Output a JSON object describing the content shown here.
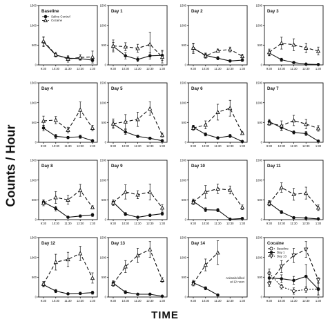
{
  "axes": {
    "xlabel": "TIME",
    "ylabel": "Counts / Hour"
  },
  "chart_data": {
    "type": "line",
    "x": [
      "9:30",
      "10:30",
      "11:30",
      "12:30",
      "1:30"
    ],
    "yticks": [
      0,
      500,
      1000,
      1500
    ],
    "ylim": [
      0,
      1500
    ],
    "panels": [
      {
        "title": "Baseline",
        "legend": [
          "Saline Control",
          "Cocaine"
        ],
        "series": [
          {
            "style": "saline",
            "values": [
              580,
              250,
              170,
              160,
              120
            ],
            "err": [
              120,
              40,
              40,
              40,
              40
            ]
          },
          {
            "style": "cocaine",
            "values": [
              600,
              260,
              150,
              190,
              200
            ],
            "err": [
              110,
              60,
              80,
              70,
              150
            ]
          }
        ]
      },
      {
        "title": "Day 1",
        "series": [
          {
            "style": "saline",
            "values": [
              470,
              230,
              140,
              230,
              240
            ],
            "err": [
              100,
              80,
              60,
              80,
              130
            ]
          },
          {
            "style": "cocaine",
            "values": [
              480,
              460,
              420,
              520,
              200
            ],
            "err": [
              150,
              100,
              100,
              300,
              150
            ]
          }
        ]
      },
      {
        "title": "Day 2",
        "series": [
          {
            "style": "saline",
            "values": [
              420,
              240,
              170,
              100,
              120
            ],
            "err": [
              130,
              60,
              40,
              30,
              30
            ]
          },
          {
            "style": "cocaine",
            "values": [
              430,
              230,
              360,
              390,
              220
            ],
            "err": [
              100,
              60,
              40,
              60,
              50
            ]
          }
        ]
      },
      {
        "title": "Day 3",
        "series": [
          {
            "style": "saline",
            "values": [
              300,
              130,
              60,
              20,
              10
            ],
            "err": [
              70,
              40,
              20,
              10,
              10
            ]
          },
          {
            "style": "cocaine",
            "values": [
              320,
              550,
              510,
              430,
              350
            ],
            "err": [
              80,
              150,
              150,
              120,
              100
            ]
          }
        ]
      },
      {
        "title": "Day 4",
        "series": [
          {
            "style": "saline",
            "values": [
              360,
              150,
              120,
              140,
              40
            ],
            "err": [
              70,
              50,
              30,
              40,
              20
            ]
          },
          {
            "style": "cocaine",
            "values": [
              540,
              560,
              310,
              820,
              360
            ],
            "err": [
              120,
              90,
              70,
              200,
              70
            ]
          }
        ]
      },
      {
        "title": "Day 5",
        "series": [
          {
            "style": "saline",
            "values": [
              460,
              260,
              150,
              100,
              40
            ],
            "err": [
              80,
              60,
              30,
              30,
              20
            ]
          },
          {
            "style": "cocaine",
            "values": [
              470,
              520,
              580,
              850,
              180
            ],
            "err": [
              120,
              180,
              180,
              170,
              50
            ]
          }
        ]
      },
      {
        "title": "Day 6",
        "series": [
          {
            "style": "saline",
            "values": [
              380,
              200,
              110,
              160,
              20
            ],
            "err": [
              50,
              40,
              30,
              40,
              10
            ]
          },
          {
            "style": "cocaine",
            "values": [
              360,
              440,
              760,
              860,
              230
            ],
            "err": [
              60,
              100,
              200,
              200,
              30
            ]
          }
        ]
      },
      {
        "title": "Day 7",
        "series": [
          {
            "style": "saline",
            "values": [
              520,
              370,
              250,
              220,
              30
            ],
            "err": [
              60,
              60,
              40,
              50,
              20
            ]
          },
          {
            "style": "cocaine",
            "values": [
              480,
              420,
              550,
              460,
              350
            ],
            "err": [
              50,
              120,
              130,
              120,
              70
            ]
          }
        ]
      },
      {
        "title": "Day 8",
        "series": [
          {
            "style": "saline",
            "values": [
              440,
              280,
              60,
              90,
              120
            ],
            "err": [
              60,
              60,
              20,
              30,
              40
            ]
          },
          {
            "style": "cocaine",
            "values": [
              420,
              560,
              500,
              740,
              310
            ],
            "err": [
              70,
              150,
              110,
              150,
              40
            ]
          }
        ]
      },
      {
        "title": "Day 9",
        "series": [
          {
            "style": "saline",
            "values": [
              440,
              140,
              60,
              110,
              150
            ],
            "err": [
              60,
              40,
              20,
              30,
              40
            ]
          },
          {
            "style": "cocaine",
            "values": [
              430,
              700,
              630,
              700,
              300
            ],
            "err": [
              70,
              180,
              100,
              200,
              80
            ]
          }
        ]
      },
      {
        "title": "Day 10",
        "series": [
          {
            "style": "saline",
            "values": [
              460,
              250,
              240,
              10,
              30
            ],
            "err": [
              60,
              50,
              40,
              10,
              10
            ]
          },
          {
            "style": "cocaine",
            "values": [
              440,
              700,
              780,
              750,
              310
            ],
            "err": [
              60,
              160,
              120,
              100,
              60
            ]
          }
        ]
      },
      {
        "title": "Day 11",
        "series": [
          {
            "style": "saline",
            "values": [
              420,
              190,
              50,
              40,
              20
            ],
            "err": [
              60,
              40,
              20,
              20,
              10
            ]
          },
          {
            "style": "cocaine",
            "values": [
              410,
              810,
              640,
              670,
              300
            ],
            "err": [
              60,
              120,
              150,
              150,
              70
            ]
          }
        ]
      },
      {
        "title": "Day 12",
        "series": [
          {
            "style": "saline",
            "values": [
              310,
              150,
              80,
              90,
              110
            ],
            "err": [
              50,
              40,
              20,
              30,
              40
            ]
          },
          {
            "style": "cocaine",
            "values": [
              330,
              880,
              950,
              1100,
              480
            ],
            "err": [
              60,
              200,
              180,
              180,
              130
            ]
          }
        ]
      },
      {
        "title": "Day 13",
        "series": [
          {
            "style": "saline",
            "values": [
              350,
              120,
              70,
              70,
              20
            ],
            "err": [
              60,
              40,
              20,
              20,
              10
            ]
          },
          {
            "style": "cocaine",
            "values": [
              330,
              770,
              1050,
              1200,
              430
            ],
            "err": [
              60,
              150,
              180,
              200,
              60
            ]
          }
        ]
      },
      {
        "title": "Day 14",
        "annotation": [
          "Animals killed",
          "at 12 noon"
        ],
        "series": [
          {
            "style": "saline",
            "values": [
              360,
              220,
              50,
              null,
              null
            ],
            "err": [
              60,
              40,
              20,
              0,
              0
            ]
          },
          {
            "style": "cocaine",
            "values": [
              340,
              810,
              1120,
              null,
              null
            ],
            "err": [
              60,
              150,
              300,
              0,
              0
            ]
          }
        ]
      },
      {
        "title": "Cocaine",
        "legend": [
          "Baseline",
          "Day 1",
          "Day 13"
        ],
        "series": [
          {
            "style": "baseline",
            "values": [
              600,
              260,
              150,
              190,
              200
            ],
            "err": [
              110,
              60,
              80,
              70,
              150
            ]
          },
          {
            "style": "day1",
            "values": [
              480,
              460,
              420,
              520,
              200
            ],
            "err": [
              150,
              100,
              100,
              300,
              150
            ]
          },
          {
            "style": "day13",
            "values": [
              330,
              770,
              1050,
              1200,
              430
            ],
            "err": [
              60,
              150,
              180,
              200,
              60
            ]
          }
        ]
      }
    ]
  }
}
